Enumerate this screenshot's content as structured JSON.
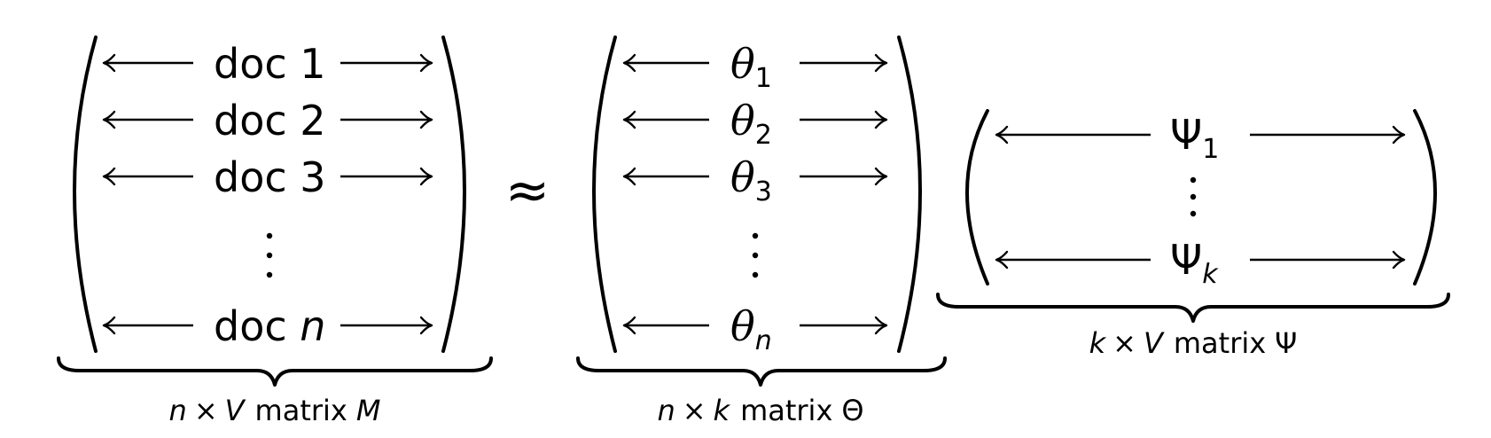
{
  "matrix_m": {
    "rows": [
      {
        "prefix": "doc ",
        "index": "1",
        "index_italic": false
      },
      {
        "prefix": "doc ",
        "index": "2",
        "index_italic": false
      },
      {
        "prefix": "doc ",
        "index": "3",
        "index_italic": false
      },
      {
        "prefix": "doc ",
        "index": "n",
        "index_italic": true
      }
    ],
    "caption": {
      "rows_var": "n",
      "times": "×",
      "cols_var": "V",
      "word": "matrix",
      "name": "M"
    }
  },
  "approx_symbol": "≈",
  "matrix_theta": {
    "rows": [
      {
        "symbol": "θ",
        "subscript": "1",
        "sub_italic": false
      },
      {
        "symbol": "θ",
        "subscript": "2",
        "sub_italic": false
      },
      {
        "symbol": "θ",
        "subscript": "3",
        "sub_italic": false
      },
      {
        "symbol": "θ",
        "subscript": "n",
        "sub_italic": true
      }
    ],
    "caption": {
      "rows_var": "n",
      "times": "×",
      "cols_var": "k",
      "word": "matrix",
      "name": "Θ"
    }
  },
  "matrix_psi": {
    "rows": [
      {
        "symbol": "Ψ",
        "subscript": "1",
        "sub_italic": false
      },
      {
        "symbol": "Ψ",
        "subscript": "k",
        "sub_italic": true
      }
    ],
    "caption": {
      "rows_var": "k",
      "times": "×",
      "cols_var": "V",
      "word": "matrix",
      "name": "Ψ"
    }
  }
}
